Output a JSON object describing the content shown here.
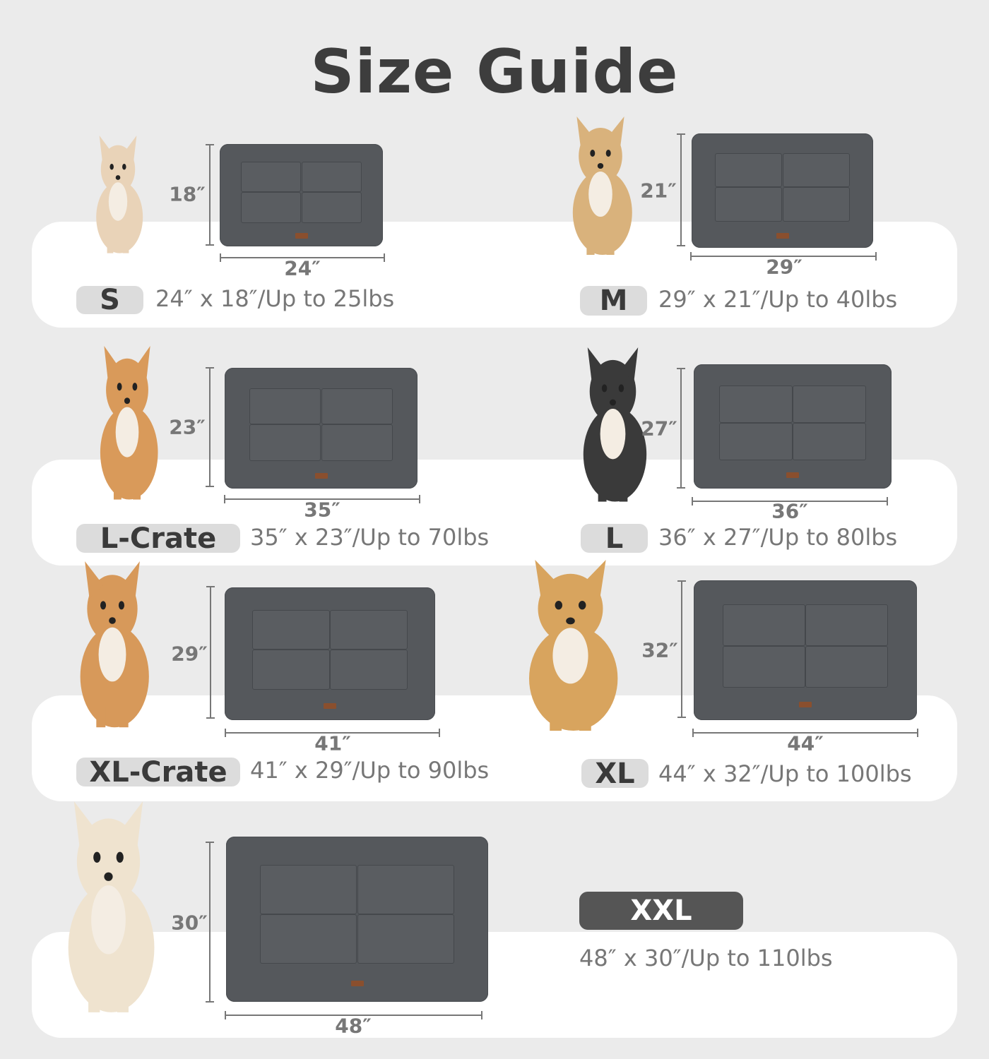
{
  "title": "Size Guide",
  "colors": {
    "background": "#ebebeb",
    "band": "#ffffff",
    "badge": "#dcdcdc",
    "badge_dark": "#555555",
    "mat": "#55585c",
    "text": "#777777"
  },
  "sizes": [
    {
      "label": "S",
      "width": "24″",
      "height": "18″",
      "spec": "24″ x 18″/Up to 25lbs",
      "dog": "chihuahua"
    },
    {
      "label": "M",
      "width": "29″",
      "height": "21″",
      "spec": "29″ x 21″/Up to 40lbs",
      "dog": "small-fluffy-dog"
    },
    {
      "label": "L-Crate",
      "width": "35″",
      "height": "23″",
      "spec": "35″ x 23″/Up to 70lbs",
      "dog": "corgi"
    },
    {
      "label": "L",
      "width": "36″",
      "height": "27″",
      "spec": "36″ x 27″/Up to 80lbs",
      "dog": "border-collie"
    },
    {
      "label": "XL-Crate",
      "width": "41″",
      "height": "29″",
      "spec": "41″ x 29″/Up to 90lbs",
      "dog": "shiba-inu"
    },
    {
      "label": "XL",
      "width": "44″",
      "height": "32″",
      "spec": "44″ x 32″/Up to 100lbs",
      "dog": "golden-retriever"
    },
    {
      "label": "XXL",
      "width": "48″",
      "height": "30″",
      "spec": "48″ x 30″/Up to 110lbs",
      "dog": "white-golden-retriever"
    }
  ]
}
